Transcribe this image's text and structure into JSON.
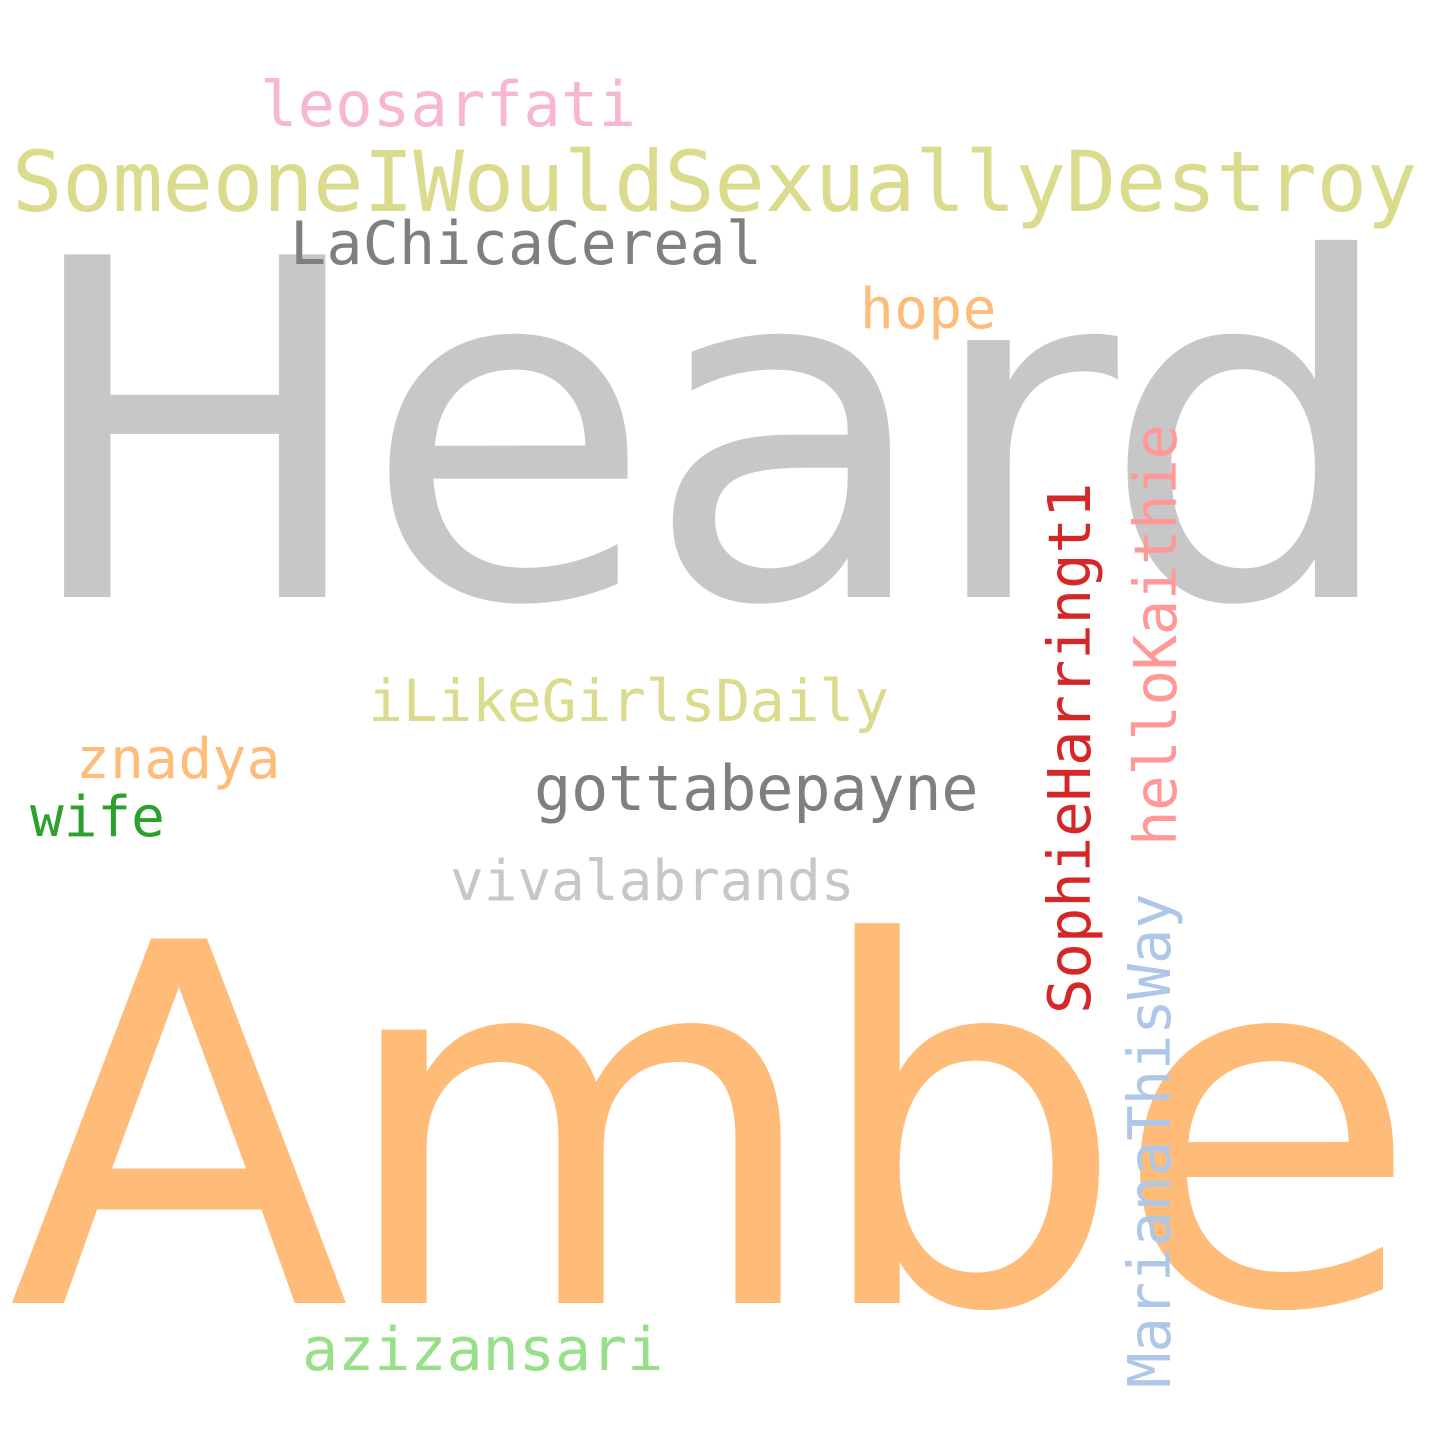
{
  "words": {
    "heard": {
      "text": "Heard",
      "color": "#c7c7c7"
    },
    "amber": {
      "text": "Amber",
      "color": "#ffbb78"
    },
    "someone": {
      "text": "SomeoneIWouldSexuallyDestroy",
      "color": "#dbdb8d"
    },
    "leosarfati": {
      "text": "leosarfati",
      "color": "#f7b6d2"
    },
    "lachica": {
      "text": "LaChicaCereal",
      "color": "#7f7f7f"
    },
    "hope": {
      "text": "hope",
      "color": "#ffbb78"
    },
    "ilike": {
      "text": "iLikeGirlsDaily",
      "color": "#dbdb8d"
    },
    "znadya": {
      "text": "znadya",
      "color": "#ffbb78"
    },
    "wife": {
      "text": "wife",
      "color": "#2ca02c"
    },
    "gottabe": {
      "text": "gottabepayne",
      "color": "#7f7f7f"
    },
    "vivala": {
      "text": "vivalabrands",
      "color": "#c7c7c7"
    },
    "azizansari": {
      "text": "azizansari",
      "color": "#98df8a"
    },
    "sophie": {
      "text": "SophieHarringt1",
      "color": "#d62728"
    },
    "hellokaithie": {
      "text": "helloKaithie",
      "color": "#ff9896"
    },
    "mariana": {
      "text": "MarianaThisWay",
      "color": "#aec7e8"
    }
  }
}
